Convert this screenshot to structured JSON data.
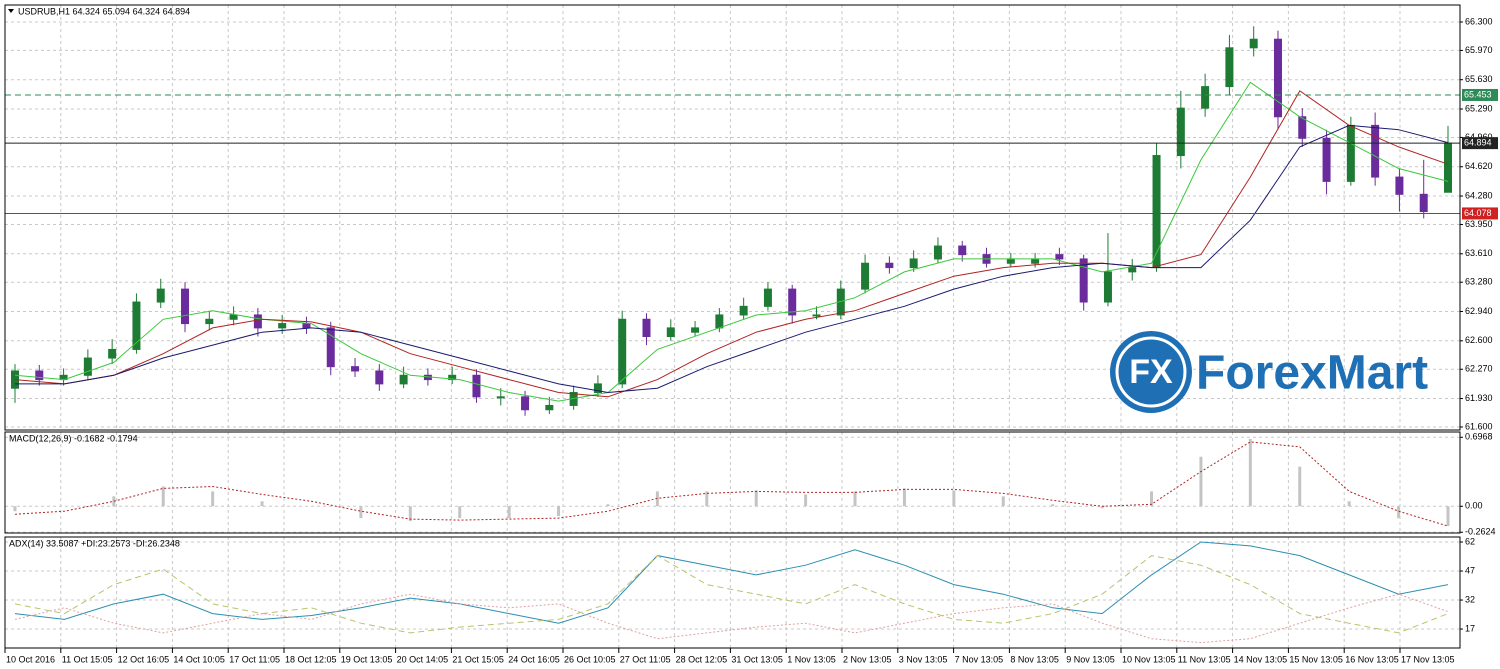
{
  "chart_data": [
    {
      "type": "candlestick",
      "title": "USDRUB,H1  64.324 65.094 64.324 64.894",
      "ylim": [
        61.565,
        66.497
      ],
      "grid": true,
      "yticks": [
        {
          "value": 66.3,
          "label": "66.300"
        },
        {
          "value": 65.97,
          "label": "65.970"
        },
        {
          "value": 65.63,
          "label": "65.630"
        },
        {
          "value": 65.29,
          "label": "65.290"
        },
        {
          "value": 64.96,
          "label": "64.960"
        },
        {
          "value": 64.62,
          "label": "64.620"
        },
        {
          "value": 64.28,
          "label": "64.280"
        },
        {
          "value": 63.95,
          "label": "63.950"
        },
        {
          "value": 63.61,
          "label": "63.610"
        },
        {
          "value": 63.28,
          "label": "63.280"
        },
        {
          "value": 62.94,
          "label": "62.940"
        },
        {
          "value": 62.6,
          "label": "62.600"
        },
        {
          "value": 62.27,
          "label": "62.270"
        },
        {
          "value": 61.93,
          "label": "61.930"
        },
        {
          "value": 61.6,
          "label": "61.600"
        }
      ],
      "up_color": "#1e7b34",
      "down_color": "#6a2c9c",
      "candles": {
        "open": [
          62.05,
          62.25,
          62.15,
          62.2,
          62.4,
          62.5,
          63.05,
          63.2,
          62.8,
          62.85,
          62.9,
          62.75,
          62.8,
          62.75,
          62.3,
          62.25,
          62.1,
          62.2,
          62.15,
          62.2,
          61.95,
          61.95,
          61.8,
          61.85,
          62.0,
          62.1,
          62.85,
          62.65,
          62.7,
          62.75,
          62.9,
          63.0,
          63.2,
          62.9,
          62.9,
          63.2,
          63.5,
          63.45,
          63.55,
          63.7,
          63.6,
          63.5,
          63.5,
          63.6,
          63.55,
          63.05,
          63.4,
          63.45,
          64.75,
          65.3,
          65.55,
          66.0,
          66.1,
          65.2,
          64.95,
          64.45,
          65.1,
          64.5,
          64.3,
          64.324
        ],
        "high": [
          62.33,
          62.32,
          62.28,
          62.5,
          62.62,
          63.15,
          63.32,
          63.28,
          62.95,
          63.0,
          62.98,
          62.9,
          62.88,
          62.82,
          62.4,
          62.33,
          62.3,
          62.28,
          62.3,
          62.27,
          62.05,
          62.02,
          61.95,
          62.08,
          62.2,
          62.95,
          62.92,
          62.85,
          62.83,
          62.98,
          63.1,
          63.28,
          63.25,
          63.0,
          63.3,
          63.6,
          63.58,
          63.65,
          63.8,
          63.76,
          63.68,
          63.62,
          63.62,
          63.68,
          63.6,
          63.85,
          63.55,
          64.9,
          65.5,
          65.7,
          66.15,
          66.25,
          66.2,
          65.3,
          65.05,
          65.2,
          65.25,
          64.6,
          64.7,
          65.094
        ],
        "low": [
          61.88,
          62.08,
          62.08,
          62.15,
          62.33,
          62.45,
          62.98,
          62.7,
          62.72,
          62.78,
          62.65,
          62.68,
          62.68,
          62.2,
          62.18,
          62.02,
          62.05,
          62.08,
          62.1,
          61.88,
          61.85,
          61.73,
          61.75,
          61.8,
          61.95,
          62.05,
          62.55,
          62.6,
          62.65,
          62.7,
          62.85,
          62.95,
          62.8,
          62.85,
          62.85,
          63.15,
          63.38,
          63.4,
          63.5,
          63.52,
          63.45,
          63.45,
          63.45,
          63.48,
          62.95,
          63.0,
          63.3,
          63.4,
          64.6,
          65.2,
          65.45,
          65.9,
          65.05,
          64.85,
          64.3,
          64.4,
          64.4,
          64.1,
          64.02,
          64.324
        ],
        "close": [
          62.25,
          62.15,
          62.2,
          62.4,
          62.5,
          63.05,
          63.2,
          62.8,
          62.85,
          62.9,
          62.75,
          62.8,
          62.75,
          62.3,
          62.25,
          62.1,
          62.2,
          62.15,
          62.2,
          61.95,
          61.95,
          61.8,
          61.85,
          62.0,
          62.1,
          62.85,
          62.65,
          62.75,
          62.75,
          62.9,
          63.0,
          63.2,
          62.9,
          62.9,
          63.2,
          63.5,
          63.45,
          63.55,
          63.7,
          63.6,
          63.5,
          63.55,
          63.55,
          63.55,
          63.05,
          63.4,
          63.45,
          64.75,
          65.3,
          65.55,
          66.0,
          66.1,
          65.2,
          64.95,
          64.45,
          65.1,
          64.5,
          64.3,
          64.1,
          64.894
        ]
      },
      "series": [
        {
          "color": "#3cc83c",
          "dash": "solid",
          "values": [
            62.2,
            62.15,
            62.35,
            62.85,
            62.95,
            62.85,
            62.8,
            62.45,
            62.2,
            62.15,
            62.0,
            61.9,
            62.0,
            62.5,
            62.7,
            62.9,
            62.95,
            63.1,
            63.4,
            63.55,
            63.55,
            63.55,
            63.4,
            63.5,
            64.7,
            65.6,
            65.2,
            64.9,
            64.6,
            64.45
          ]
        },
        {
          "color": "#b22222",
          "dash": "solid",
          "values": [
            62.15,
            62.1,
            62.2,
            62.45,
            62.75,
            62.85,
            62.82,
            62.7,
            62.45,
            62.3,
            62.15,
            62.0,
            61.95,
            62.15,
            62.45,
            62.7,
            62.85,
            62.95,
            63.15,
            63.35,
            63.45,
            63.5,
            63.5,
            63.45,
            63.6,
            64.5,
            65.5,
            65.1,
            64.85,
            64.65
          ]
        },
        {
          "color": "#1a1a6e",
          "dash": "solid",
          "values": [
            62.1,
            62.1,
            62.2,
            62.4,
            62.55,
            62.7,
            62.75,
            62.7,
            62.55,
            62.4,
            62.25,
            62.1,
            62.0,
            62.05,
            62.3,
            62.5,
            62.7,
            62.85,
            63.0,
            63.2,
            63.35,
            63.45,
            63.5,
            63.45,
            63.45,
            64.0,
            64.85,
            65.1,
            65.05,
            64.9
          ]
        }
      ],
      "levels": [
        {
          "value": 65.453,
          "color": "#2e8b57",
          "dash": "dashed"
        },
        {
          "value": 64.894,
          "color": "#222222",
          "dash": "solid"
        },
        {
          "value": 64.078,
          "color": "#d02020",
          "dash": "solid"
        }
      ],
      "watermark_icon": "FX",
      "watermark": "ForexMart"
    },
    {
      "type": "macd",
      "title": "MACD(12,26,9) -0.1682 -0.1794",
      "ylim": [
        -0.27,
        0.75
      ],
      "grid": true,
      "yticks": [
        0.6968,
        {
          "value": 0,
          "label": "0.00"
        },
        -0.2624
      ],
      "color": "#c4c4c4",
      "values": [
        -0.05,
        0.0,
        0.1,
        0.2,
        0.15,
        0.05,
        0.0,
        -0.12,
        -0.15,
        -0.12,
        -0.12,
        -0.1,
        0.02,
        0.15,
        0.15,
        0.16,
        0.12,
        0.15,
        0.18,
        0.16,
        0.1,
        0.02,
        -0.02,
        0.15,
        0.5,
        0.68,
        0.4,
        0.05,
        -0.12,
        -0.2
      ],
      "series": [
        {
          "color": "#b22222",
          "dash": "dotted",
          "values": [
            -0.08,
            -0.05,
            0.05,
            0.18,
            0.2,
            0.12,
            0.05,
            -0.05,
            -0.13,
            -0.14,
            -0.13,
            -0.12,
            -0.05,
            0.08,
            0.13,
            0.15,
            0.14,
            0.14,
            0.17,
            0.17,
            0.13,
            0.06,
            0.0,
            0.02,
            0.35,
            0.65,
            0.6,
            0.15,
            -0.05,
            -0.2
          ]
        }
      ]
    },
    {
      "type": "line",
      "title": "ADX(14) 33.5087 +DI:23.2573 -DI:26.2348",
      "ylim": [
        7.2,
        64.6
      ],
      "grid": true,
      "yticks": [
        62,
        47,
        32,
        17
      ],
      "series": [
        {
          "color": "#2b8fb0",
          "dash": "solid",
          "values": [
            25,
            22,
            30,
            35,
            25,
            22,
            24,
            28,
            33,
            30,
            25,
            20,
            28,
            55,
            50,
            45,
            50,
            58,
            50,
            40,
            35,
            28,
            25,
            45,
            62,
            60,
            55,
            45,
            35,
            40
          ]
        },
        {
          "color": "#b8c46a",
          "dash": "dashed",
          "values": [
            30,
            25,
            40,
            48,
            30,
            25,
            28,
            20,
            15,
            18,
            20,
            22,
            30,
            55,
            40,
            35,
            30,
            40,
            30,
            22,
            20,
            25,
            35,
            55,
            50,
            40,
            25,
            20,
            15,
            25
          ]
        },
        {
          "color": "#e0a0a0",
          "dash": "dotted",
          "values": [
            22,
            28,
            20,
            15,
            20,
            25,
            22,
            30,
            35,
            30,
            28,
            30,
            20,
            12,
            15,
            18,
            20,
            15,
            20,
            25,
            28,
            30,
            20,
            12,
            10,
            12,
            20,
            28,
            35,
            26
          ]
        }
      ]
    }
  ],
  "time_axis": [
    "10 Oct 2016",
    "11 Oct 15:05",
    "12 Oct 16:05",
    "14 Oct 10:05",
    "17 Oct 11:05",
    "18 Oct 12:05",
    "19 Oct 13:05",
    "20 Oct 14:05",
    "21 Oct 15:05",
    "24 Oct 16:05",
    "26 Oct 10:05",
    "27 Oct 11:05",
    "28 Oct 12:05",
    "31 Oct 13:05",
    "1 Nov 13:05",
    "2 Nov 13:05",
    "3 Nov 13:05",
    "7 Nov 13:05",
    "8 Nov 13:05",
    "9 Nov 13:05",
    "10 Nov 13:05",
    "11 Nov 13:05",
    "14 Nov 13:05",
    "15 Nov 13:05",
    "16 Nov 13:05",
    "17 Nov 13:05"
  ]
}
